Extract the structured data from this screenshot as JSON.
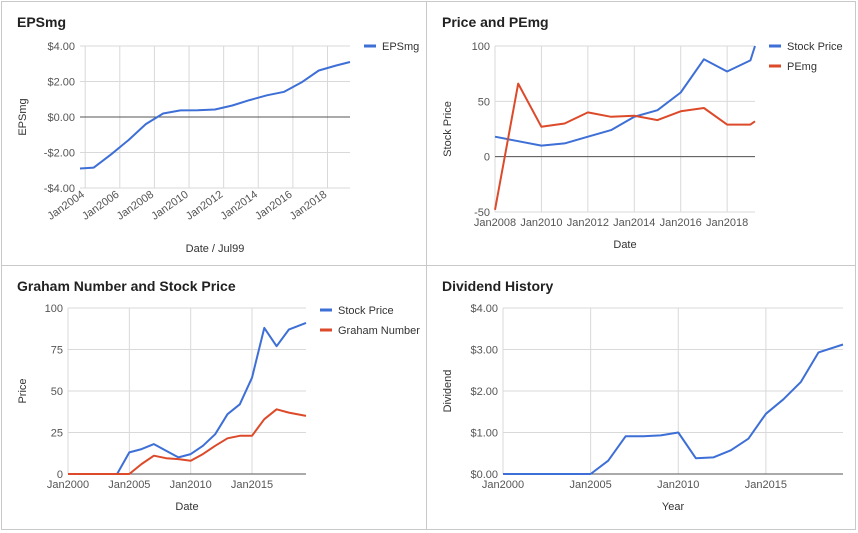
{
  "colors": {
    "blue": "#3d6fd6",
    "red": "#dc4a2a",
    "grid": "#d9d9d9",
    "zero_line": "#555555",
    "text": "#555555",
    "title": "#222222"
  },
  "chart_data": [
    {
      "type": "line",
      "title": "EPSmg",
      "xlabel": "Date / Jul99",
      "ylabel": "EPSmg",
      "x_type": "time",
      "xlim": [
        2003.7,
        2019.3
      ],
      "x_ticks": [
        2004,
        2006,
        2008,
        2010,
        2012,
        2014,
        2016,
        2018
      ],
      "x_tick_labels": [
        "Jan2004",
        "Jan2006",
        "Jan2008",
        "Jan2010",
        "Jan2012",
        "Jan2014",
        "Jan2016",
        "Jan2018"
      ],
      "x_tick_rotate": true,
      "ylim": [
        -4,
        4
      ],
      "y_ticks": [
        -4,
        -2,
        0,
        2,
        4
      ],
      "y_tick_labels": [
        "-$4.00",
        "-$2.00",
        "$0.00",
        "$2.00",
        "$4.00"
      ],
      "zero_line": true,
      "legend_position": "right",
      "series": [
        {
          "name": "EPSmg",
          "color": "blue",
          "x": [
            2003.7,
            2004.5,
            2005.5,
            2006.5,
            2007.5,
            2008.5,
            2009.5,
            2010.5,
            2011.5,
            2012.5,
            2013.5,
            2014.5,
            2015.5,
            2016.5,
            2017.5,
            2018.5,
            2019.3
          ],
          "y": [
            -2.9,
            -2.85,
            -2.1,
            -1.3,
            -0.4,
            0.2,
            0.37,
            0.38,
            0.42,
            0.65,
            0.95,
            1.22,
            1.42,
            1.95,
            2.62,
            2.9,
            3.1
          ]
        }
      ]
    },
    {
      "type": "line",
      "title": "Price and PEmg",
      "xlabel": "Date",
      "ylabel": "Stock Price",
      "x_type": "time",
      "xlim": [
        2008,
        2019.2
      ],
      "x_ticks": [
        2008,
        2010,
        2012,
        2014,
        2016,
        2018
      ],
      "x_tick_labels": [
        "Jan2008",
        "Jan2010",
        "Jan2012",
        "Jan2014",
        "Jan2016",
        "Jan2018"
      ],
      "x_tick_rotate": false,
      "ylim": [
        -50,
        100
      ],
      "y_ticks": [
        -50,
        0,
        50,
        100
      ],
      "y_tick_labels": [
        "-50",
        "0",
        "50",
        "100"
      ],
      "zero_line": true,
      "legend_position": "right",
      "series": [
        {
          "name": "Stock Price",
          "color": "blue",
          "x": [
            2008,
            2009,
            2010,
            2011,
            2012,
            2013,
            2014,
            2015,
            2016,
            2017,
            2018,
            2019,
            2019.2
          ],
          "y": [
            18,
            14,
            10,
            12,
            18,
            24,
            36,
            42,
            58,
            88,
            77,
            87,
            100
          ]
        },
        {
          "name": "PEmg",
          "color": "red",
          "x": [
            2008,
            2009,
            2010,
            2011,
            2012,
            2013,
            2014,
            2015,
            2016,
            2017,
            2018,
            2019,
            2019.2
          ],
          "y": [
            -48,
            66,
            27,
            30,
            40,
            36,
            37,
            33,
            41,
            44,
            29,
            29,
            32
          ]
        }
      ]
    },
    {
      "type": "line",
      "title": "Graham Number and Stock Price",
      "xlabel": "Date",
      "ylabel": "Price",
      "x_type": "time",
      "xlim": [
        2000,
        2019.4
      ],
      "x_ticks": [
        2000,
        2005,
        2010,
        2015
      ],
      "x_tick_labels": [
        "Jan2000",
        "Jan2005",
        "Jan2010",
        "Jan2015"
      ],
      "x_tick_rotate": false,
      "ylim": [
        0,
        100
      ],
      "y_ticks": [
        0,
        25,
        50,
        75,
        100
      ],
      "y_tick_labels": [
        "0",
        "25",
        "50",
        "75",
        "100"
      ],
      "zero_line": true,
      "legend_position": "right",
      "series": [
        {
          "name": "Stock Price",
          "color": "blue",
          "x": [
            2000,
            2001,
            2002,
            2003,
            2004,
            2005,
            2006,
            2007,
            2008,
            2009,
            2010,
            2011,
            2012,
            2013,
            2014,
            2015,
            2016,
            2017,
            2018,
            2019.4
          ],
          "y": [
            0,
            0,
            0,
            0,
            0,
            13,
            15,
            18,
            14,
            10,
            12,
            17,
            24,
            36,
            42,
            58,
            88,
            77,
            87,
            91
          ]
        },
        {
          "name": "Graham Number",
          "color": "red",
          "x": [
            2000,
            2001,
            2002,
            2003,
            2004,
            2005,
            2006,
            2007,
            2008,
            2009,
            2010,
            2011,
            2012,
            2013,
            2014,
            2015,
            2016,
            2017,
            2018,
            2019.4
          ],
          "y": [
            0,
            0,
            0,
            0,
            0,
            0,
            6,
            11,
            9.5,
            9,
            8,
            12,
            17,
            21.5,
            23,
            23,
            33,
            39,
            37,
            35
          ]
        }
      ]
    },
    {
      "type": "line",
      "title": "Dividend History",
      "xlabel": "Year",
      "ylabel": "Dividend",
      "x_type": "time",
      "xlim": [
        2000,
        2019.4
      ],
      "x_ticks": [
        2000,
        2005,
        2010,
        2015
      ],
      "x_tick_labels": [
        "Jan2000",
        "Jan2005",
        "Jan2010",
        "Jan2015"
      ],
      "x_tick_rotate": false,
      "ylim": [
        0,
        4
      ],
      "y_ticks": [
        0,
        1,
        2,
        3,
        4
      ],
      "y_tick_labels": [
        "$0.00",
        "$1.00",
        "$2.00",
        "$3.00",
        "$4.00"
      ],
      "zero_line": true,
      "legend_position": "none",
      "series": [
        {
          "name": "",
          "color": "blue",
          "x": [
            2000,
            2001,
            2002,
            2003,
            2004,
            2005,
            2006,
            2007,
            2008,
            2009,
            2010,
            2011,
            2012,
            2013,
            2014,
            2015,
            2016,
            2017,
            2018,
            2019.4
          ],
          "y": [
            0,
            0,
            0,
            0,
            0,
            0,
            0.32,
            0.91,
            0.91,
            0.93,
            1.0,
            0.38,
            0.4,
            0.57,
            0.85,
            1.45,
            1.8,
            2.22,
            2.93,
            3.12
          ]
        }
      ]
    }
  ]
}
